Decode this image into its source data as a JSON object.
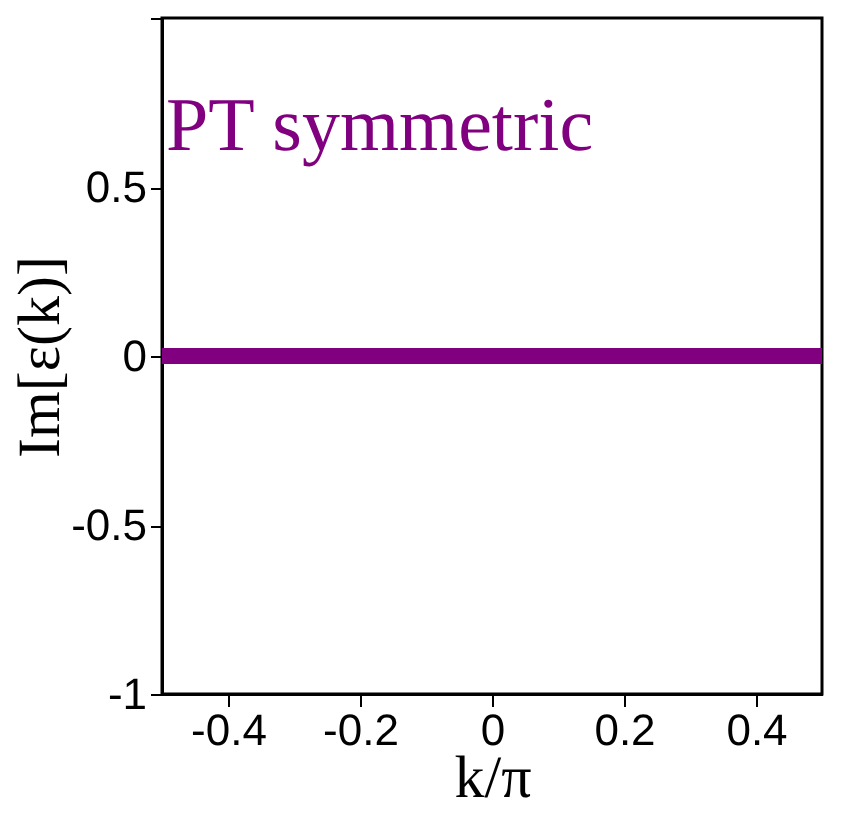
{
  "chart_data": {
    "type": "line",
    "xlabel": "k/π",
    "ylabel": "Im[ε(k)]",
    "annotations": [
      "PT symmetric"
    ],
    "x": [
      -0.5,
      0.5
    ],
    "series": [
      {
        "color": "#800080",
        "values": [
          0,
          0
        ]
      }
    ],
    "xlim": [
      -0.5,
      0.5
    ],
    "xticks": [
      -0.4,
      -0.2,
      0,
      0.2,
      0.4
    ],
    "ylim": [
      -1,
      1
    ],
    "yticks": [
      -1,
      -0.5,
      0,
      0.5,
      {
        "value": 1,
        "label": null
      }
    ],
    "grid": false
  }
}
